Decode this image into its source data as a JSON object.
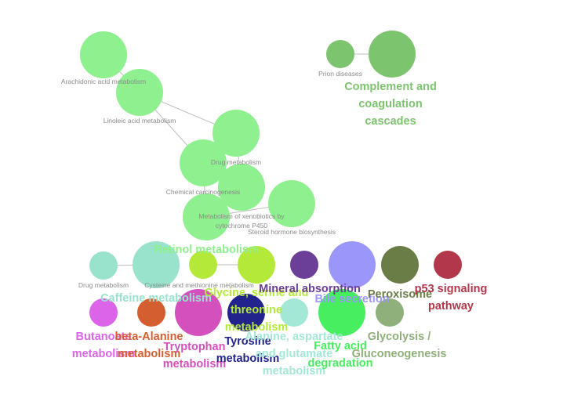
{
  "nodes": [
    {
      "id": "arachidonic",
      "name": "arachidonic-acid-metabolism-node",
      "label": "Arachidonic acid metabolism",
      "color": "#8ef08e",
      "style": "small"
    },
    {
      "id": "linoleic",
      "name": "linoleic-acid-metabolism-node",
      "label": "Linoleic acid metabolism",
      "color": "#8ef08e",
      "style": "small"
    },
    {
      "id": "drug_metabolism_top",
      "name": "drug-metabolism-node",
      "label": "Drug metabolism",
      "color": "#8ef08e",
      "style": "small"
    },
    {
      "id": "chemical_carcinogenesis",
      "name": "chemical-carcinogenesis-node",
      "label": "Chemical carcinogenesis",
      "color": "#8ef08e",
      "style": "small"
    },
    {
      "id": "metabolism_xenobiotics",
      "name": "metabolism-of-xenobiotics-node",
      "label": "Metabolism of xenobiotics by\ncytochrome P450",
      "color": "#8ef08e",
      "style": "small"
    },
    {
      "id": "steroid_hormone",
      "name": "steroid-hormone-biosynthesis-node",
      "label": "Steroid hormone biosynthesis",
      "color": "#8ef08e",
      "style": "small"
    },
    {
      "id": "retinol",
      "name": "retinol-metabolism-node",
      "label": "Retinol metabolism",
      "color": "#8ef08e",
      "style": "big"
    },
    {
      "id": "prion",
      "name": "prion-diseases-node",
      "label": "Prion diseases",
      "color": "#7dc46e",
      "style": "small"
    },
    {
      "id": "complement",
      "name": "complement-coagulation-node",
      "label": "Complement and\ncoagulation\ncascades",
      "color": "#7dc46e",
      "style": "big"
    },
    {
      "id": "drug_metabolism_other",
      "name": "drug-metabolism-other-node",
      "label": "Drug metabolism",
      "color": "#99e3cc",
      "style": "small"
    },
    {
      "id": "cysteine",
      "name": "cysteine-methionine-node",
      "label": "Cysteine and methionine metabolism",
      "color": "#99e3cc",
      "style": "small"
    },
    {
      "id": "caffeine",
      "name": "caffeine-metabolism-node",
      "label": "Caffeine metabolism",
      "color": "#99e3cc",
      "style": "big"
    },
    {
      "id": "gst_a",
      "name": "glycine-serine-node-a",
      "label": "",
      "color": "#b4e93a",
      "style": "big"
    },
    {
      "id": "glycine",
      "name": "glycine-serine-threonine-node",
      "label": "Glycine, serine and\nthreonine\nmetabolism",
      "color": "#b4e93a",
      "style": "big"
    },
    {
      "id": "mineral",
      "name": "mineral-absorption-node",
      "label": "Mineral absorption",
      "color": "#6b3e97",
      "style": "big"
    },
    {
      "id": "bile",
      "name": "bile-secretion-node",
      "label": "Bile secretion",
      "color": "#9b97fa",
      "style": "big"
    },
    {
      "id": "peroxisome",
      "name": "peroxisome-node",
      "label": "Peroxisome",
      "color": "#6b7d47",
      "style": "big"
    },
    {
      "id": "p53",
      "name": "p53-signaling-node",
      "label": "p53 signaling\npathway",
      "color": "#b3374a",
      "style": "big"
    },
    {
      "id": "butanoate",
      "name": "butanoate-metabolism-node",
      "label": "Butanoate\nmetabolism",
      "color": "#dc64e8",
      "style": "big"
    },
    {
      "id": "beta_alanine",
      "name": "beta-alanine-metabolism-node",
      "label": "beta-Alanine\nmetabolism",
      "color": "#d55e30",
      "style": "big"
    },
    {
      "id": "tryptophan",
      "name": "tryptophan-metabolism-node",
      "label": "Tryptophan\nmetabolism",
      "color": "#d450bd",
      "style": "big"
    },
    {
      "id": "tyrosine",
      "name": "tyrosine-metabolism-node",
      "label": "Tyrosine\nmetabolism",
      "color": "#23238c",
      "style": "big"
    },
    {
      "id": "alanine",
      "name": "alanine-aspartate-glutamate-node",
      "label": "Alanine, aspartate\nand glutamate\nmetabolism",
      "color": "#a3e8d6",
      "style": "big"
    },
    {
      "id": "fatty_acid",
      "name": "fatty-acid-degradation-node",
      "label": "Fatty acid\ndegradation",
      "color": "#46ee60",
      "style": "big"
    },
    {
      "id": "glycolysis",
      "name": "glycolysis-gluconeogenesis-node",
      "label": "Glycolysis /\nGluconeogenesis",
      "color": "#8fb07b",
      "style": "big"
    }
  ],
  "edges": [
    [
      "arachidonic",
      "linoleic"
    ],
    [
      "linoleic",
      "drug_metabolism_top"
    ],
    [
      "linoleic",
      "chemical_carcinogenesis"
    ],
    [
      "drug_metabolism_top",
      "chemical_carcinogenesis"
    ],
    [
      "drug_metabolism_top",
      "metabolism_xenobiotics"
    ],
    [
      "chemical_carcinogenesis",
      "metabolism_xenobiotics"
    ],
    [
      "chemical_carcinogenesis",
      "retinol"
    ],
    [
      "metabolism_xenobiotics",
      "retinol"
    ],
    [
      "retinol",
      "steroid_hormone"
    ],
    [
      "prion",
      "complement"
    ],
    [
      "drug_metabolism_other",
      "cysteine"
    ],
    [
      "gst_a",
      "glycine"
    ]
  ]
}
